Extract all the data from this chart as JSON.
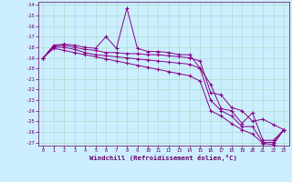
{
  "xlabel": "Windchill (Refroidissement éolien,°C)",
  "bg_color": "#cceeff",
  "grid_color": "#aaddcc",
  "line_color": "#880088",
  "xlim_min": -0.5,
  "xlim_max": 23.5,
  "ylim_min": -27.3,
  "ylim_max": -13.7,
  "xticks": [
    0,
    1,
    2,
    3,
    4,
    5,
    6,
    7,
    8,
    9,
    10,
    11,
    12,
    13,
    14,
    15,
    16,
    17,
    18,
    19,
    20,
    21,
    22,
    23
  ],
  "yticks": [
    -27,
    -26,
    -25,
    -24,
    -23,
    -22,
    -21,
    -20,
    -19,
    -18,
    -17,
    -16,
    -15,
    -14
  ],
  "series": [
    [
      -19.0,
      -17.8,
      -17.7,
      -17.8,
      -18.0,
      -18.1,
      -17.0,
      -18.1,
      -14.3,
      -18.1,
      -18.4,
      -18.4,
      -18.5,
      -18.7,
      -18.7,
      -20.0,
      -21.5,
      -23.8,
      -24.0,
      -25.2,
      -24.2,
      -26.8,
      -26.8,
      -25.8
    ],
    [
      -19.0,
      -17.9,
      -17.8,
      -18.0,
      -18.2,
      -18.3,
      -18.5,
      -18.5,
      -18.6,
      -18.6,
      -18.7,
      -18.7,
      -18.8,
      -18.9,
      -19.0,
      -19.3,
      -22.3,
      -22.5,
      -23.7,
      -24.0,
      -25.0,
      -24.8,
      -25.3,
      -25.8
    ],
    [
      -19.0,
      -18.0,
      -18.0,
      -18.2,
      -18.5,
      -18.7,
      -18.8,
      -18.9,
      -19.0,
      -19.1,
      -19.2,
      -19.3,
      -19.4,
      -19.5,
      -19.6,
      -20.0,
      -23.0,
      -24.0,
      -24.5,
      -25.5,
      -25.5,
      -27.0,
      -27.0,
      -25.8
    ],
    [
      -19.0,
      -18.1,
      -18.3,
      -18.5,
      -18.7,
      -18.9,
      -19.1,
      -19.3,
      -19.5,
      -19.7,
      -19.9,
      -20.1,
      -20.3,
      -20.5,
      -20.7,
      -21.2,
      -24.0,
      -24.5,
      -25.2,
      -25.8,
      -26.2,
      -27.1,
      -27.2,
      -25.8
    ]
  ]
}
